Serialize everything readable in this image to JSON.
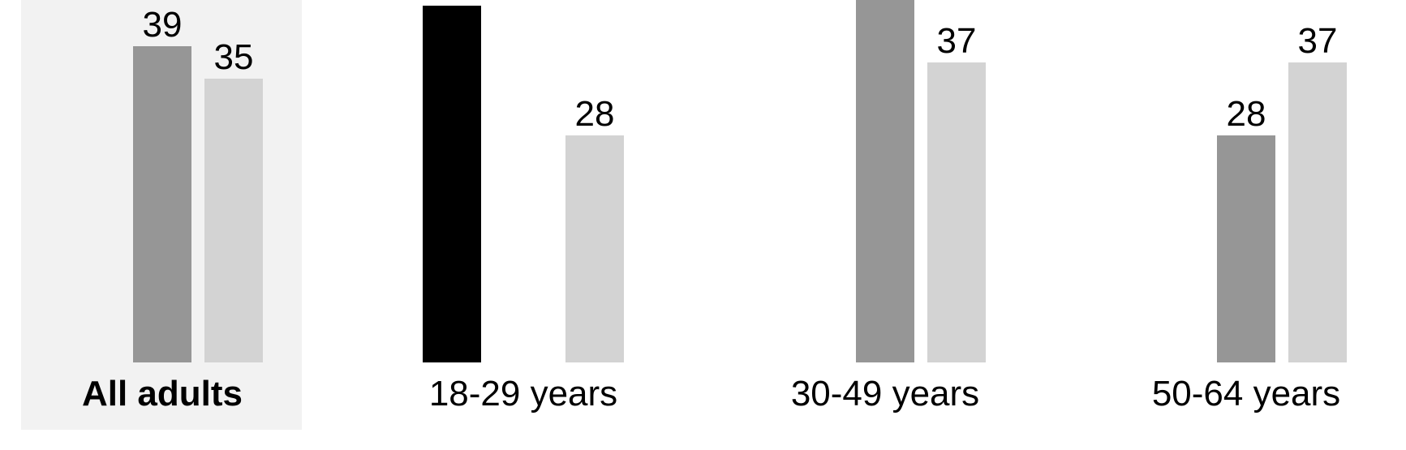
{
  "chart_data": {
    "type": "bar",
    "categories": [
      "All adults",
      "18-29 years",
      "30-49 years",
      "50-64 years"
    ],
    "highlight_category": "All adults",
    "series": [
      {
        "color": "#000000",
        "values": [
          null,
          44,
          null,
          null
        ],
        "labels": [
          "",
          "",
          "",
          ""
        ]
      },
      {
        "color": "#969696",
        "values": [
          39,
          null,
          45,
          28
        ],
        "labels": [
          "39",
          "",
          "",
          "28"
        ]
      },
      {
        "color": "#d3d3d3",
        "values": [
          35,
          28,
          37,
          37
        ],
        "labels": [
          "35",
          "28",
          "37",
          "37"
        ]
      }
    ],
    "cropped_at_top": true,
    "grid": false,
    "legend": "none",
    "highlight_color": "#f2f2f2"
  }
}
